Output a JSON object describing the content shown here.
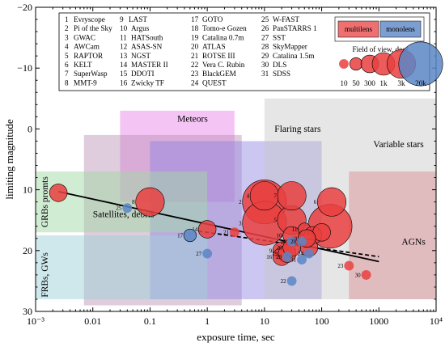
{
  "chart_data": {
    "type": "scatter",
    "xlabel": "exposure time, sec",
    "ylabel": "limiting magnitude",
    "xscale": "log",
    "xlim": [
      0.001,
      10000
    ],
    "ylim": [
      30,
      -20
    ],
    "y_inverted": true,
    "x_tick_labels": [
      "10⁻³",
      "0.01",
      "0.1",
      "1",
      "10",
      "100",
      "1000",
      "10⁴"
    ],
    "x_tick_values": [
      0.001,
      0.01,
      0.1,
      1,
      10,
      100,
      1000,
      10000
    ],
    "y_ticks": [
      -20,
      -10,
      0,
      10,
      20,
      30
    ],
    "y_tick_labels": [
      "−20",
      "−10",
      "0",
      "10",
      "20",
      "30"
    ],
    "regions": [
      {
        "label": "Meteors",
        "x": [
          0.03,
          3
        ],
        "y": [
          -3,
          12
        ],
        "color": "#e77de8",
        "opacity": 0.45,
        "label_x": 0.3,
        "label_y": -1.2
      },
      {
        "label": "Satellites, debris",
        "x": [
          0.007,
          4
        ],
        "y": [
          1,
          29
        ],
        "color": "#b98fb3",
        "opacity": 0.45,
        "label_x": 0.01,
        "label_y": 14.5
      },
      {
        "label": "Flaring stars",
        "x": [
          0.1,
          100
        ],
        "y": [
          2,
          28
        ],
        "color": "#8c82e3",
        "opacity": 0.45,
        "label_x": 15,
        "label_y": 0.5
      },
      {
        "label": "Variable stars",
        "x": [
          10,
          10000
        ],
        "y": [
          -5,
          28
        ],
        "color": "#c7c7c7",
        "opacity": 0.45,
        "label_x": 800,
        "label_y": 3
      },
      {
        "label": "AGNs",
        "x": [
          300,
          10000
        ],
        "y": [
          7,
          28
        ],
        "color": "#d9898f",
        "opacity": 0.45,
        "label_x": 2500,
        "label_y": 19
      },
      {
        "label": "GRBs promts",
        "x": [
          0.001,
          1
        ],
        "y": [
          7,
          17
        ],
        "color": "#a2d9a5",
        "opacity": 0.5,
        "label_x": 0.00125,
        "label_y": 12,
        "vertical": true
      },
      {
        "label": "FRBs, GWs",
        "x": [
          0.001,
          1
        ],
        "y": [
          17.5,
          28
        ],
        "color": "#9fd2d8",
        "opacity": 0.5,
        "label_x": 0.00125,
        "label_y": 24,
        "vertical": true
      }
    ],
    "series": [
      {
        "name": "multilens",
        "color": "#e94040"
      },
      {
        "name": "monolens",
        "color": "#5b86c6"
      }
    ],
    "points": [
      {
        "id": "1",
        "x": 140,
        "y": 16,
        "fov": 20000,
        "type": "multilens"
      },
      {
        "id": "2",
        "x": 10,
        "y": 12,
        "fov": 20000,
        "type": "multilens"
      },
      {
        "id": "3",
        "x": 10,
        "y": 15.5,
        "fov": 20000,
        "type": "multilens"
      },
      {
        "id": "4",
        "x": 10,
        "y": 11,
        "fov": 3000,
        "type": "multilens"
      },
      {
        "id": "5",
        "x": 30,
        "y": 15,
        "fov": 3000,
        "type": "multilens"
      },
      {
        "id": "6",
        "x": 150,
        "y": 12,
        "fov": 3000,
        "type": "multilens"
      },
      {
        "id": "7",
        "x": 30,
        "y": 11,
        "fov": 3000,
        "type": "multilens"
      },
      {
        "id": "8",
        "x": 0.1,
        "y": 12,
        "fov": 3000,
        "type": "multilens"
      },
      {
        "id": "9",
        "x": 20,
        "y": 20,
        "fov": 300,
        "type": "multilens"
      },
      {
        "id": "10",
        "x": 30,
        "y": 17.5,
        "fov": 300,
        "type": "multilens"
      },
      {
        "id": "11",
        "x": 50,
        "y": 16.5,
        "fov": 50,
        "type": "multilens"
      },
      {
        "id": "12",
        "x": 70,
        "y": 17.5,
        "fov": 300,
        "type": "multilens"
      },
      {
        "id": "13",
        "x": 60,
        "y": 19.5,
        "fov": 300,
        "type": "multilens"
      },
      {
        "id": "14",
        "x": 1,
        "y": 16.5,
        "fov": 300,
        "type": "multilens"
      },
      {
        "id": "15",
        "x": 100,
        "y": 17,
        "fov": 300,
        "type": "multilens"
      },
      {
        "id": "16",
        "x": 20,
        "y": 21,
        "fov": 300,
        "type": "multilens"
      },
      {
        "id": "17",
        "x": 0.5,
        "y": 17.5,
        "fov": 50,
        "type": "monolens"
      },
      {
        "id": "18",
        "x": 55,
        "y": 18,
        "fov": 300,
        "type": "multilens"
      },
      {
        "id": "19",
        "x": 25,
        "y": 20.5,
        "fov": 300,
        "type": "multilens"
      },
      {
        "id": "20",
        "x": 30,
        "y": 19.5,
        "fov": 300,
        "type": "multilens"
      },
      {
        "id": "21",
        "x": 3,
        "y": 17,
        "fov": 10,
        "type": "multilens"
      },
      {
        "id": "22",
        "x": 30,
        "y": 25,
        "fov": 10,
        "type": "monolens"
      },
      {
        "id": "23",
        "x": 300,
        "y": 22.5,
        "fov": 10,
        "type": "multilens"
      },
      {
        "id": "24",
        "x": 60,
        "y": 20.5,
        "fov": 10,
        "type": "monolens"
      },
      {
        "id": "25",
        "x": 0.04,
        "y": 13,
        "fov": 10,
        "type": "monolens"
      },
      {
        "id": "26",
        "x": 30,
        "y": 18.5,
        "fov": 10,
        "type": "monolens"
      },
      {
        "id": "27",
        "x": 1,
        "y": 20.5,
        "fov": 10,
        "type": "monolens"
      },
      {
        "id": "28",
        "x": 45,
        "y": 18.5,
        "fov": 10,
        "type": "monolens"
      },
      {
        "id": "29",
        "x": 25,
        "y": 21,
        "fov": 10,
        "type": "monolens"
      },
      {
        "id": "30",
        "x": 600,
        "y": 24,
        "fov": 10,
        "type": "multilens"
      },
      {
        "id": "31",
        "x": 45,
        "y": 21.5,
        "fov": 10,
        "type": "monolens"
      },
      {
        "id": "GRB",
        "x": 0.0025,
        "y": 10.5,
        "fov": 300,
        "type": "multilens",
        "label": ""
      }
    ],
    "lines": [
      {
        "style": "solid",
        "x": [
          0.0025,
          1000
        ],
        "y": [
          10.3,
          21.8
        ]
      },
      {
        "style": "dashed",
        "x": [
          0.7,
          1000
        ],
        "y": [
          16.8,
          21.0
        ]
      }
    ],
    "legend_list": [
      [
        "1",
        "Evryscope"
      ],
      [
        "2",
        "Pi of the Sky"
      ],
      [
        "3",
        "GWAC"
      ],
      [
        "4",
        "AWCam"
      ],
      [
        "5",
        "RAPTOR"
      ],
      [
        "6",
        "KELT"
      ],
      [
        "7",
        "SuperWasp"
      ],
      [
        "8",
        "MMT-9"
      ],
      [
        "9",
        "LAST"
      ],
      [
        "10",
        "Argus"
      ],
      [
        "11",
        "HATSouth"
      ],
      [
        "12",
        "ASAS-SN"
      ],
      [
        "13",
        "NGST"
      ],
      [
        "14",
        "MASTER II"
      ],
      [
        "15",
        "DDOTI"
      ],
      [
        "16",
        "Zwicky TF"
      ],
      [
        "17",
        "GOTO"
      ],
      [
        "18",
        "Tomo-e Gozen"
      ],
      [
        "19",
        "Catalina 0.7m"
      ],
      [
        "20",
        "ATLAS"
      ],
      [
        "21",
        "ROTSE III"
      ],
      [
        "22",
        "Vera C. Rubin"
      ],
      [
        "23",
        "BlackGEM"
      ],
      [
        "24",
        "QUEST"
      ],
      [
        "25",
        "W-FAST"
      ],
      [
        "26",
        "PanSTARRS 1"
      ],
      [
        "27",
        "SST"
      ],
      [
        "28",
        "SkyMapper"
      ],
      [
        "29",
        "Catalina 1.5m"
      ],
      [
        "30",
        "DLS"
      ],
      [
        "31",
        "SDSS"
      ]
    ],
    "legend_placement": "top",
    "fov_legend": {
      "title": "Field of view, deg²",
      "values": [
        10,
        50,
        300,
        1000,
        3000,
        20000
      ],
      "labels": [
        "10",
        "50",
        "300",
        "1k",
        "3k",
        "20k"
      ]
    },
    "colors": {
      "multilens": "#e94040",
      "monolens": "#5b86c6",
      "line": "#000000"
    },
    "grid": false
  }
}
